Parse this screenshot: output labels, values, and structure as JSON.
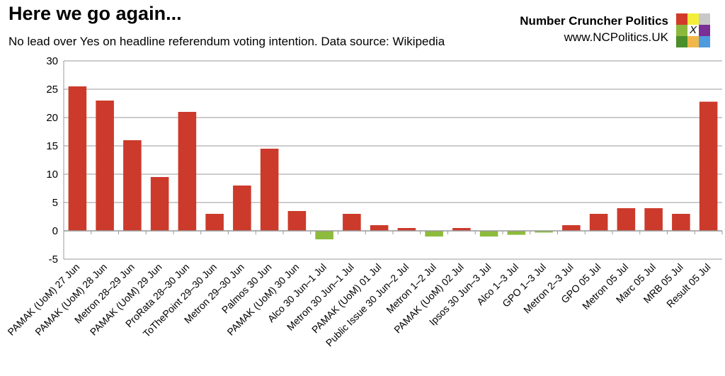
{
  "chart_data": {
    "type": "bar",
    "title": "Here we go again...",
    "subtitle": "No lead over Yes on headline referendum voting intention. Data source: Wikipedia",
    "categories": [
      "PAMAK (UoM) 27 Jun",
      "PAMAK (UoM) 28 Jun",
      "Metron 28–29 Jun",
      "PAMAK (UoM) 29 Jun",
      "ProRata 28–30 Jun",
      "ToThePoint 29–30 Jun",
      "Metron 29–30 Jun",
      "Palmos 30 Jun",
      "PAMAK (UoM) 30 Jun",
      "Alco 30 Jun–1 Jul",
      "Metron 30 Jun–1 Jul",
      "PAMAK (UoM) 01 Jul",
      "Public Issue 30 Jun–2 Jul",
      "Metron 1–2 Jul",
      "PAMAK (UoM) 02 Jul",
      "Ipsos 30 Jun–3 Jul",
      "Alco 1–3 Jul",
      "GPO 1–3 Jul",
      "Metron 2–3 Jul",
      "GPO 05 Jul",
      "Metron 05 Jul",
      "Marc 05 Jul",
      "MRB 05 Jul",
      "Result 05 Jul"
    ],
    "values": [
      25.5,
      23,
      16,
      9.5,
      21,
      3,
      8,
      14.5,
      3.5,
      -1.5,
      3,
      1,
      0.5,
      -1,
      0.5,
      -1,
      -0.7,
      -0.3,
      1,
      3,
      4,
      4,
      3,
      22.8
    ],
    "ylim": [
      -5,
      30
    ],
    "yticks": [
      -5,
      0,
      5,
      10,
      15,
      20,
      25,
      30
    ],
    "grid": true,
    "colors": {
      "positive": "#cc3a2b",
      "negative": "#8dbb3d",
      "grid": "#999999"
    }
  },
  "brand": {
    "name": "Number Cruncher Politics",
    "url": "www.NCPolitics.UK",
    "logo_mark": "X",
    "logo_colors": [
      "#d13b2a",
      "#f4ee3a",
      "#c8c8c8",
      "#8cb83e",
      "#ffffff",
      "#7a2e96",
      "#4a8f2a",
      "#f0b84a",
      "#4f9be0"
    ]
  }
}
